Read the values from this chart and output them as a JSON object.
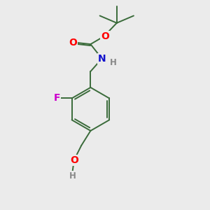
{
  "background_color": "#ebebeb",
  "bond_color": "#3a6b3a",
  "atom_colors": {
    "O": "#ff0000",
    "N": "#1010cc",
    "F": "#cc00cc",
    "H_gray": "#888888",
    "C": "#3a6b3a"
  },
  "font_size_atoms": 10,
  "font_size_small": 8.5,
  "line_width": 1.4
}
